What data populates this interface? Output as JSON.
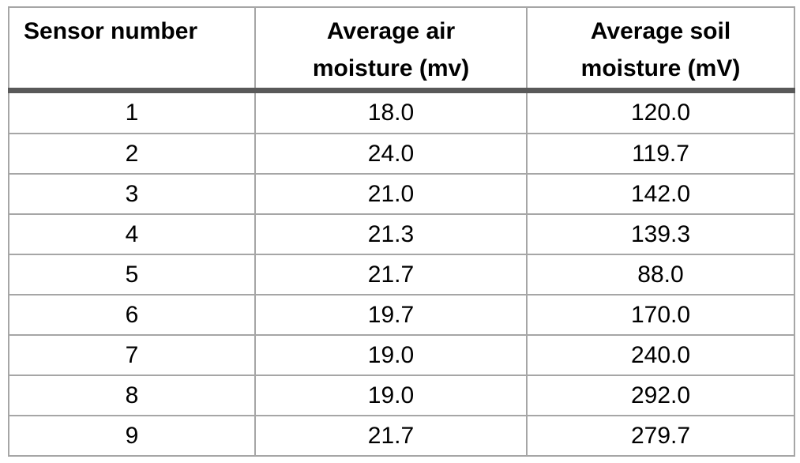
{
  "colors": {
    "background": "#ffffff",
    "text": "#000000",
    "grid_border": "#a6a6a6",
    "header_rule": "#595959"
  },
  "table": {
    "headers": [
      {
        "label": "Sensor number"
      },
      {
        "label": "Average air\nmoisture (mv)"
      },
      {
        "label": "Average soil\nmoisture (mV)"
      }
    ],
    "rows": [
      {
        "sensor": "1",
        "air": "18.0",
        "soil": "120.0"
      },
      {
        "sensor": "2",
        "air": "24.0",
        "soil": "119.7"
      },
      {
        "sensor": "3",
        "air": "21.0",
        "soil": "142.0"
      },
      {
        "sensor": "4",
        "air": "21.3",
        "soil": "139.3"
      },
      {
        "sensor": "5",
        "air": "21.7",
        "soil": "88.0"
      },
      {
        "sensor": "6",
        "air": "19.7",
        "soil": "170.0"
      },
      {
        "sensor": "7",
        "air": "19.0",
        "soil": "240.0"
      },
      {
        "sensor": "8",
        "air": "19.0",
        "soil": "292.0"
      },
      {
        "sensor": "9",
        "air": "21.7",
        "soil": "279.7"
      }
    ]
  },
  "chart_data": {
    "type": "table",
    "title": "",
    "columns": [
      "Sensor number",
      "Average air moisture (mv)",
      "Average soil moisture (mV)"
    ],
    "rows": [
      [
        1,
        18.0,
        120.0
      ],
      [
        2,
        24.0,
        119.7
      ],
      [
        3,
        21.0,
        142.0
      ],
      [
        4,
        21.3,
        139.3
      ],
      [
        5,
        21.7,
        88.0
      ],
      [
        6,
        19.7,
        170.0
      ],
      [
        7,
        19.0,
        240.0
      ],
      [
        8,
        19.0,
        292.0
      ],
      [
        9,
        21.7,
        279.7
      ]
    ]
  }
}
